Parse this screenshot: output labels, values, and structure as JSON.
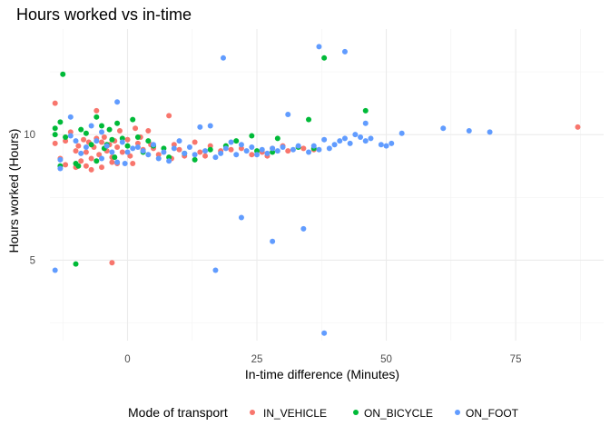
{
  "chart_data": {
    "type": "scatter",
    "title": "Hours worked vs in-time",
    "xlabel": "In-time difference (Minutes)",
    "ylabel": "Hours worked (Hours)",
    "xlim": [
      -15,
      92
    ],
    "ylim": [
      1.8,
      14.2
    ],
    "xticks": [
      0,
      25,
      50,
      75
    ],
    "yticks": [
      5,
      10
    ],
    "xgrid_minor": [
      -12.5,
      12.5,
      37.5,
      62.5,
      87.5
    ],
    "ygrid_minor": [
      2.5,
      7.5,
      12.5
    ],
    "grid": true,
    "legend": {
      "title": "Mode of transport",
      "position": "bottom"
    },
    "series": [
      {
        "name": "IN_VEHICLE",
        "color": "#F8766D",
        "points": [
          [
            -14,
            11.25
          ],
          [
            -14,
            9.65
          ],
          [
            -13,
            9.05
          ],
          [
            -12,
            8.8
          ],
          [
            -12,
            9.75
          ],
          [
            -11,
            10.1
          ],
          [
            -10,
            9.35
          ],
          [
            -10,
            8.7
          ],
          [
            -9.5,
            9.55
          ],
          [
            -9,
            8.95
          ],
          [
            -8.5,
            9.8
          ],
          [
            -8,
            9.3
          ],
          [
            -8,
            8.75
          ],
          [
            -7.5,
            9.7
          ],
          [
            -7,
            9.05
          ],
          [
            -7,
            8.6
          ],
          [
            -6.5,
            9.5
          ],
          [
            -6,
            10.95
          ],
          [
            -6,
            9.85
          ],
          [
            -5.5,
            9.2
          ],
          [
            -5,
            9.7
          ],
          [
            -5,
            8.7
          ],
          [
            -4.5,
            9.9
          ],
          [
            -4,
            9.35
          ],
          [
            -3.5,
            9.6
          ],
          [
            -3,
            9.1
          ],
          [
            -3,
            8.9
          ],
          [
            -2.5,
            9.75
          ],
          [
            -2,
            9.5
          ],
          [
            -2,
            8.85
          ],
          [
            -1.5,
            10.15
          ],
          [
            -1,
            9.3
          ],
          [
            0,
            9.8
          ],
          [
            0.5,
            9.15
          ],
          [
            1,
            8.85
          ],
          [
            1.5,
            10.25
          ],
          [
            2,
            9.65
          ],
          [
            2.5,
            9.9
          ],
          [
            3,
            9.4
          ],
          [
            4,
            10.15
          ],
          [
            4.5,
            9.6
          ],
          [
            5,
            9.45
          ],
          [
            6,
            9.2
          ],
          [
            8,
            10.75
          ],
          [
            8.5,
            9.05
          ],
          [
            9,
            9.6
          ],
          [
            10,
            9.4
          ],
          [
            11,
            9.15
          ],
          [
            13,
            9.7
          ],
          [
            14,
            9.3
          ],
          [
            15,
            9.15
          ],
          [
            16,
            9.55
          ],
          [
            18,
            9.35
          ],
          [
            20,
            9.4
          ],
          [
            22,
            9.45
          ],
          [
            24,
            9.2
          ],
          [
            26,
            9.3
          ],
          [
            27,
            9.15
          ],
          [
            28,
            9.45
          ],
          [
            30,
            9.55
          ],
          [
            31,
            9.35
          ],
          [
            34,
            9.45
          ],
          [
            36,
            9.4
          ],
          [
            -3,
            4.9
          ],
          [
            87,
            10.3
          ]
        ]
      },
      {
        "name": "ON_BICYCLE",
        "color": "#00BA38",
        "points": [
          [
            -14,
            10.25
          ],
          [
            -14,
            10.0
          ],
          [
            -13,
            10.5
          ],
          [
            -13,
            8.75
          ],
          [
            -12.5,
            12.4
          ],
          [
            -12,
            9.9
          ],
          [
            -10,
            8.85
          ],
          [
            -9.5,
            8.75
          ],
          [
            -9,
            10.2
          ],
          [
            -8,
            10.05
          ],
          [
            -7,
            9.6
          ],
          [
            -6,
            10.7
          ],
          [
            -6,
            8.95
          ],
          [
            -5,
            10.35
          ],
          [
            -4.5,
            9.45
          ],
          [
            -4,
            9.6
          ],
          [
            -3.5,
            10.2
          ],
          [
            -3,
            9.8
          ],
          [
            -2.5,
            9.1
          ],
          [
            -2,
            10.45
          ],
          [
            -1,
            9.85
          ],
          [
            0,
            9.55
          ],
          [
            1,
            10.6
          ],
          [
            2,
            9.9
          ],
          [
            3,
            9.3
          ],
          [
            4,
            9.75
          ],
          [
            5,
            9.55
          ],
          [
            7,
            9.45
          ],
          [
            8,
            9.1
          ],
          [
            11,
            9.25
          ],
          [
            13,
            9.0
          ],
          [
            16,
            9.4
          ],
          [
            19,
            9.55
          ],
          [
            21,
            9.75
          ],
          [
            24,
            9.95
          ],
          [
            25,
            9.35
          ],
          [
            28,
            9.3
          ],
          [
            29,
            9.85
          ],
          [
            33,
            9.5
          ],
          [
            35,
            10.6
          ],
          [
            36,
            9.45
          ],
          [
            38,
            13.05
          ],
          [
            46,
            10.95
          ],
          [
            -10,
            4.85
          ]
        ]
      },
      {
        "name": "ON_FOOT",
        "color": "#619CFF",
        "points": [
          [
            -14,
            4.6
          ],
          [
            -13,
            8.65
          ],
          [
            -13,
            9.0
          ],
          [
            -11,
            10.7
          ],
          [
            -11,
            9.95
          ],
          [
            -10,
            9.75
          ],
          [
            -9,
            9.25
          ],
          [
            -8,
            9.5
          ],
          [
            -7,
            10.35
          ],
          [
            -6,
            9.75
          ],
          [
            -5,
            9.05
          ],
          [
            -5,
            10.1
          ],
          [
            -4,
            9.55
          ],
          [
            -3,
            9.3
          ],
          [
            -2,
            8.9
          ],
          [
            -2,
            11.3
          ],
          [
            -1,
            9.7
          ],
          [
            -0.5,
            8.85
          ],
          [
            0,
            9.3
          ],
          [
            1,
            9.45
          ],
          [
            2,
            9.5
          ],
          [
            3,
            9.35
          ],
          [
            4,
            9.2
          ],
          [
            5,
            9.6
          ],
          [
            6,
            9.05
          ],
          [
            7,
            9.3
          ],
          [
            8,
            8.95
          ],
          [
            9,
            9.45
          ],
          [
            10,
            9.75
          ],
          [
            11,
            9.25
          ],
          [
            12,
            9.5
          ],
          [
            13,
            9.2
          ],
          [
            14,
            10.3
          ],
          [
            15,
            9.35
          ],
          [
            16,
            10.35
          ],
          [
            17,
            9.1
          ],
          [
            18,
            9.25
          ],
          [
            19,
            9.45
          ],
          [
            20,
            9.7
          ],
          [
            21,
            9.2
          ],
          [
            22,
            9.6
          ],
          [
            23,
            9.35
          ],
          [
            24,
            9.5
          ],
          [
            25,
            9.2
          ],
          [
            26,
            9.4
          ],
          [
            27,
            9.25
          ],
          [
            28,
            9.45
          ],
          [
            29,
            9.35
          ],
          [
            30,
            9.5
          ],
          [
            31,
            10.8
          ],
          [
            32,
            9.4
          ],
          [
            33,
            9.55
          ],
          [
            35,
            9.3
          ],
          [
            36,
            9.55
          ],
          [
            37,
            9.4
          ],
          [
            38,
            9.8
          ],
          [
            39,
            9.45
          ],
          [
            40,
            9.6
          ],
          [
            41,
            9.75
          ],
          [
            42,
            9.85
          ],
          [
            43,
            9.65
          ],
          [
            44,
            10.0
          ],
          [
            45,
            9.9
          ],
          [
            46,
            10.45
          ],
          [
            46,
            9.75
          ],
          [
            47,
            9.85
          ],
          [
            49,
            9.6
          ],
          [
            50,
            9.55
          ],
          [
            51,
            9.65
          ],
          [
            53,
            10.05
          ],
          [
            61,
            10.25
          ],
          [
            66,
            10.15
          ],
          [
            70,
            10.1
          ],
          [
            18.5,
            13.05
          ],
          [
            37,
            13.5
          ],
          [
            42,
            13.3
          ],
          [
            22,
            6.7
          ],
          [
            28,
            5.75
          ],
          [
            34,
            6.25
          ],
          [
            17,
            4.6
          ],
          [
            38,
            2.1
          ]
        ]
      }
    ]
  }
}
